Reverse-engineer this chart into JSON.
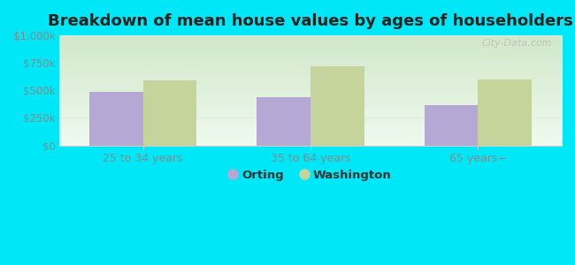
{
  "title": "Breakdown of mean house values by ages of householders",
  "categories": [
    "25 to 34 years",
    "35 to 64 years",
    "65 years+"
  ],
  "orting_values": [
    490000,
    440000,
    370000
  ],
  "washington_values": [
    590000,
    720000,
    600000
  ],
  "orting_color": "#b5a8d5",
  "washington_color": "#c5d49a",
  "ylim": [
    0,
    1000000
  ],
  "yticks": [
    0,
    250000,
    500000,
    750000,
    1000000
  ],
  "ytick_labels": [
    "$0",
    "$250k",
    "$500k",
    "$750k",
    "$1,000k"
  ],
  "plot_bg_top": "#d0e8c8",
  "plot_bg_bottom": "#e8f5e0",
  "outer_background": "#00e8f8",
  "grid_color": "#e0ede0",
  "bar_width": 0.32,
  "legend_labels": [
    "Orting",
    "Washington"
  ],
  "watermark": "City-Data.com",
  "title_fontsize": 13,
  "tick_label_color": "#888888",
  "xlabel_color": "#888888"
}
